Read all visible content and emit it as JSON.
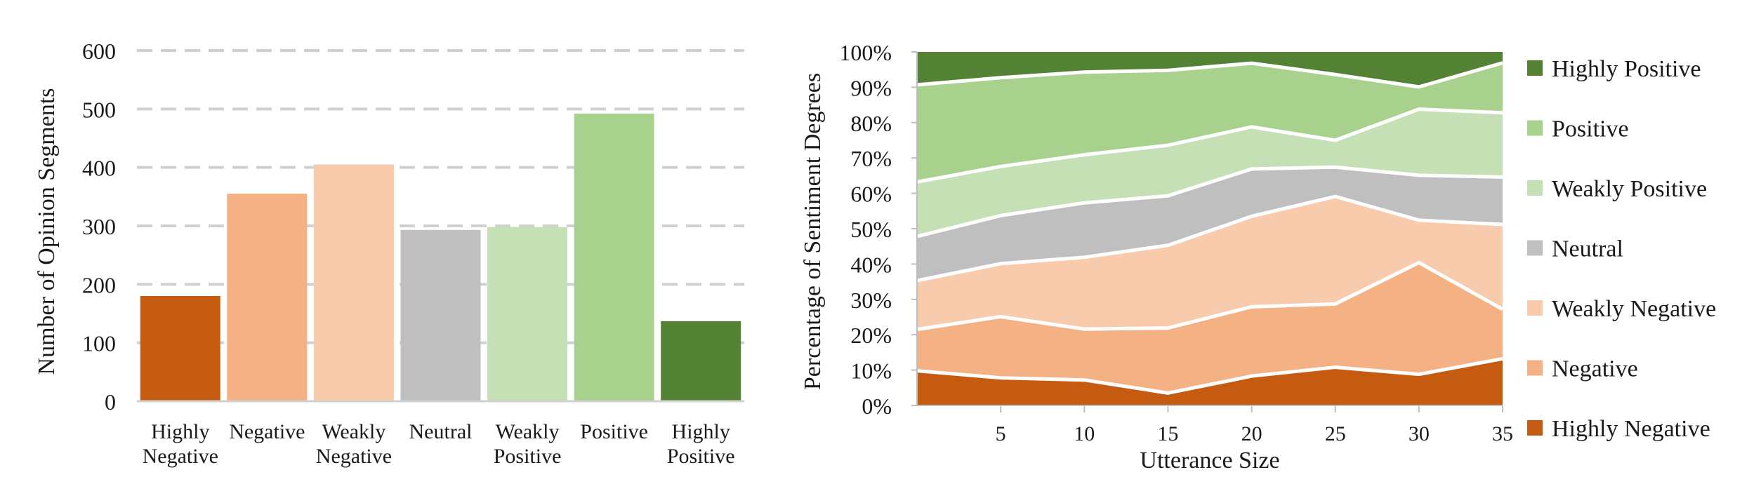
{
  "chart_data": [
    {
      "type": "bar",
      "title": "",
      "xlabel": "",
      "ylabel": "Number of Opinion Segments",
      "ylim": [
        0,
        600
      ],
      "yticks": [
        "0",
        "100",
        "200",
        "300",
        "400",
        "500",
        "600"
      ],
      "grid": true,
      "categories": [
        [
          "Highly",
          "Negative"
        ],
        [
          "Negative"
        ],
        [
          "Weakly",
          "Negative"
        ],
        [
          "Neutral"
        ],
        [
          "Weakly",
          "Positive"
        ],
        [
          "Positive"
        ],
        [
          "Highly",
          "Positive"
        ]
      ],
      "values": [
        180,
        355,
        405,
        293,
        298,
        492,
        137
      ],
      "colors": [
        "#c55a11",
        "#f4b183",
        "#f8cbad",
        "#bfbfbf",
        "#c5e0b4",
        "#a9d18e",
        "#548235"
      ]
    },
    {
      "type": "area",
      "stacked": true,
      "title": "",
      "xlabel": "Utterance Size",
      "ylabel": "Percentage of Sentiment Degrees",
      "xlim": [
        0,
        35
      ],
      "ylim": [
        0,
        100
      ],
      "x": [
        0,
        5,
        10,
        15,
        20,
        25,
        30,
        35
      ],
      "xticks": [
        "5",
        "10",
        "15",
        "20",
        "25",
        "30",
        "35"
      ],
      "yticks": [
        "0%",
        "10%",
        "20%",
        "30%",
        "40%",
        "50%",
        "60%",
        "70%",
        "80%",
        "90%",
        "100%"
      ],
      "legend_position": "right",
      "series": [
        {
          "name": "Highly Negative",
          "color": "#c55a11",
          "values": [
            9.8,
            7.8,
            7.2,
            3.5,
            8.3,
            10.8,
            8.8,
            13.2
          ]
        },
        {
          "name": "Negative",
          "color": "#f4b183",
          "values": [
            11.7,
            17.3,
            14.4,
            18.4,
            19.6,
            17.9,
            31.6,
            14.0
          ]
        },
        {
          "name": "Weakly Negative",
          "color": "#f8cbad",
          "values": [
            13.8,
            15.0,
            20.3,
            23.4,
            25.6,
            30.4,
            12.0,
            24.0
          ]
        },
        {
          "name": "Neutral",
          "color": "#bfbfbf",
          "values": [
            12.5,
            13.6,
            15.4,
            14.0,
            13.4,
            8.3,
            12.7,
            13.4
          ]
        },
        {
          "name": "Weakly Positive",
          "color": "#c5e0b4",
          "values": [
            15.4,
            13.9,
            13.6,
            14.3,
            11.9,
            7.6,
            18.7,
            18.2
          ]
        },
        {
          "name": "Positive",
          "color": "#a9d18e",
          "values": [
            27.5,
            25.1,
            23.4,
            21.2,
            18.0,
            18.6,
            6.3,
            14.1
          ]
        },
        {
          "name": "Highly Positive",
          "color": "#548235",
          "values": [
            9.3,
            7.3,
            5.7,
            5.2,
            3.2,
            6.4,
            9.9,
            3.1
          ]
        }
      ]
    }
  ]
}
